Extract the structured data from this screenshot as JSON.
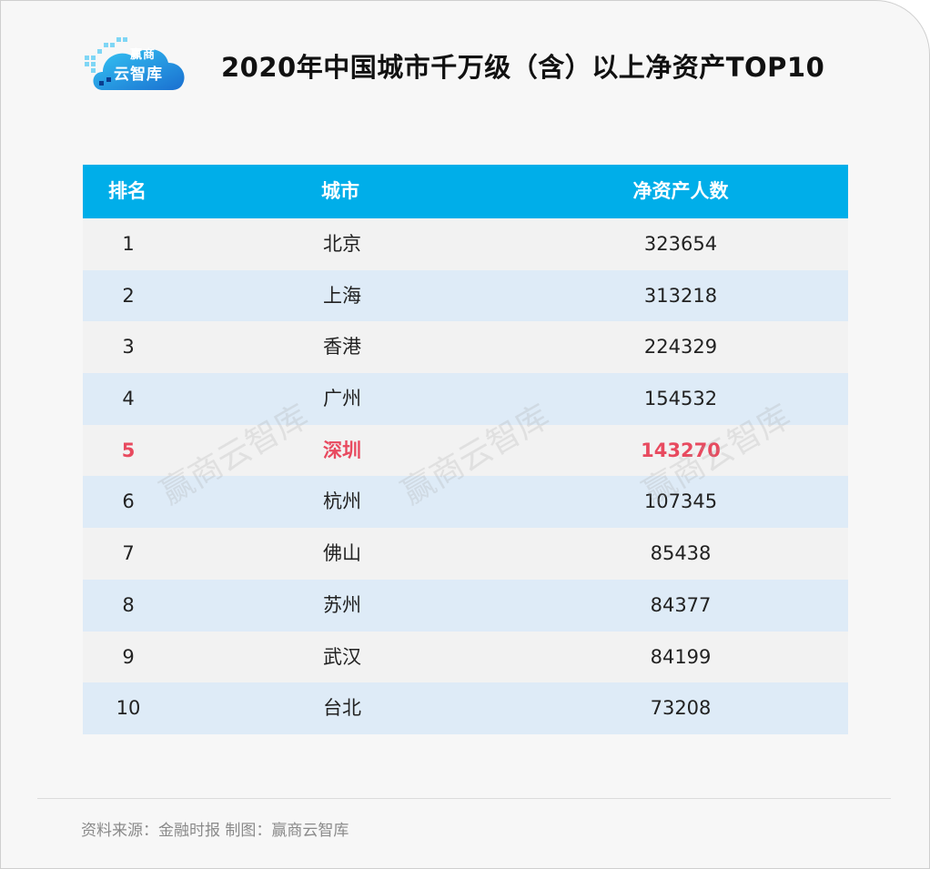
{
  "logo": {
    "top_text": "赢商",
    "bottom_text": "云智库"
  },
  "title": "2020年中国城市千万级（含）以上净资产TOP10",
  "watermark_text": "赢商云智库",
  "chart_data": {
    "type": "table",
    "title": "2020年中国城市千万级（含）以上净资产TOP10",
    "headers": [
      "排名",
      "城市",
      "净资产人数"
    ],
    "rows": [
      {
        "rank": "1",
        "city": "北京",
        "count": "323654",
        "highlight": false
      },
      {
        "rank": "2",
        "city": "上海",
        "count": "313218",
        "highlight": false
      },
      {
        "rank": "3",
        "city": "香港",
        "count": "224329",
        "highlight": false
      },
      {
        "rank": "4",
        "city": "广州",
        "count": "154532",
        "highlight": false
      },
      {
        "rank": "5",
        "city": "深圳",
        "count": "143270",
        "highlight": true
      },
      {
        "rank": "6",
        "city": "杭州",
        "count": "107345",
        "highlight": false
      },
      {
        "rank": "7",
        "city": "佛山",
        "count": "85438",
        "highlight": false
      },
      {
        "rank": "8",
        "city": "苏州",
        "count": "84377",
        "highlight": false
      },
      {
        "rank": "9",
        "city": "武汉",
        "count": "84199",
        "highlight": false
      },
      {
        "rank": "10",
        "city": "台北",
        "count": "73208",
        "highlight": false
      }
    ]
  },
  "colors": {
    "header_bg": "#00aee9",
    "row_odd": "#f2f2f2",
    "row_even": "#deebf7",
    "highlight_text": "#e84a5f"
  },
  "footer": "资料来源：金融时报  制图：赢商云智库"
}
